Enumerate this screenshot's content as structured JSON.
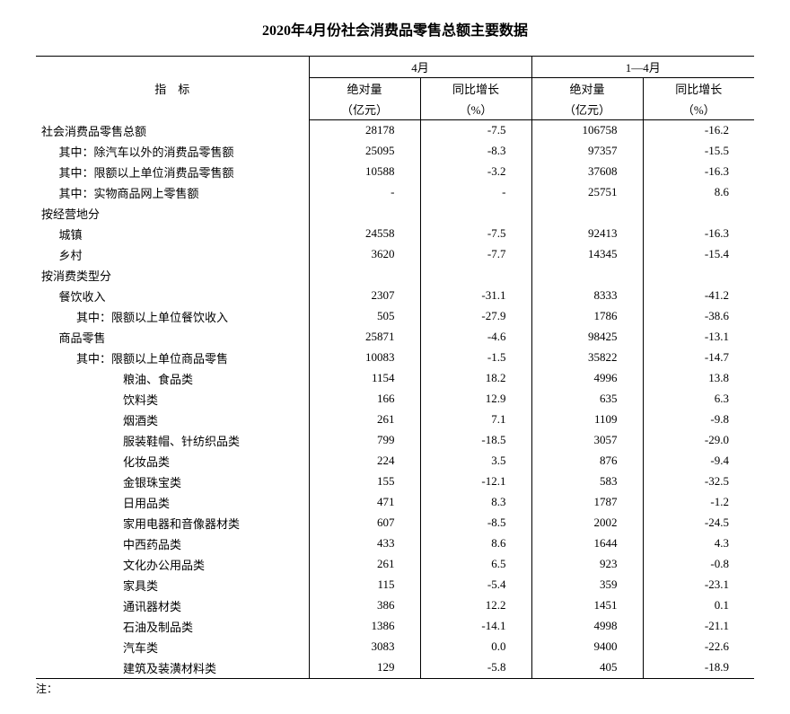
{
  "title": "2020年4月份社会消费品零售总额主要数据",
  "footnote": "注：",
  "header": {
    "indicator": "指　标",
    "group1": "4月",
    "group2": "1—4月",
    "abs": "绝对量",
    "abs_unit": "（亿元）",
    "yoy": "同比增长",
    "yoy_unit": "（%）"
  },
  "rows": [
    {
      "label": "社会消费品零售总额",
      "indent": 0,
      "a": "28178",
      "b": "-7.5",
      "c": "106758",
      "d": "-16.2"
    },
    {
      "label": "其中：除汽车以外的消费品零售额",
      "indent": 1,
      "a": "25095",
      "b": "-8.3",
      "c": "97357",
      "d": "-15.5"
    },
    {
      "label": "其中：限额以上单位消费品零售额",
      "indent": 1,
      "a": "10588",
      "b": "-3.2",
      "c": "37608",
      "d": "-16.3"
    },
    {
      "label": "其中：实物商品网上零售额",
      "indent": 1,
      "a": "-",
      "b": "-",
      "c": "25751",
      "d": "8.6"
    },
    {
      "label": "按经营地分",
      "indent": 0,
      "a": "",
      "b": "",
      "c": "",
      "d": ""
    },
    {
      "label": "城镇",
      "indent": 1,
      "a": "24558",
      "b": "-7.5",
      "c": "92413",
      "d": "-16.3"
    },
    {
      "label": "乡村",
      "indent": 1,
      "a": "3620",
      "b": "-7.7",
      "c": "14345",
      "d": "-15.4"
    },
    {
      "label": "按消费类型分",
      "indent": 0,
      "a": "",
      "b": "",
      "c": "",
      "d": ""
    },
    {
      "label": "餐饮收入",
      "indent": 1,
      "a": "2307",
      "b": "-31.1",
      "c": "8333",
      "d": "-41.2"
    },
    {
      "label": "其中：限额以上单位餐饮收入",
      "indent": 2,
      "a": "505",
      "b": "-27.9",
      "c": "1786",
      "d": "-38.6"
    },
    {
      "label": "商品零售",
      "indent": 1,
      "a": "25871",
      "b": "-4.6",
      "c": "98425",
      "d": "-13.1"
    },
    {
      "label": "其中：限额以上单位商品零售",
      "indent": 2,
      "a": "10083",
      "b": "-1.5",
      "c": "35822",
      "d": "-14.7"
    },
    {
      "label": "粮油、食品类",
      "indent": 3,
      "a": "1154",
      "b": "18.2",
      "c": "4996",
      "d": "13.8"
    },
    {
      "label": "饮料类",
      "indent": 3,
      "a": "166",
      "b": "12.9",
      "c": "635",
      "d": "6.3"
    },
    {
      "label": "烟酒类",
      "indent": 3,
      "a": "261",
      "b": "7.1",
      "c": "1109",
      "d": "-9.8"
    },
    {
      "label": "服装鞋帽、针纺织品类",
      "indent": 3,
      "a": "799",
      "b": "-18.5",
      "c": "3057",
      "d": "-29.0"
    },
    {
      "label": "化妆品类",
      "indent": 3,
      "a": "224",
      "b": "3.5",
      "c": "876",
      "d": "-9.4"
    },
    {
      "label": "金银珠宝类",
      "indent": 3,
      "a": "155",
      "b": "-12.1",
      "c": "583",
      "d": "-32.5"
    },
    {
      "label": "日用品类",
      "indent": 3,
      "a": "471",
      "b": "8.3",
      "c": "1787",
      "d": "-1.2"
    },
    {
      "label": "家用电器和音像器材类",
      "indent": 3,
      "a": "607",
      "b": "-8.5",
      "c": "2002",
      "d": "-24.5"
    },
    {
      "label": "中西药品类",
      "indent": 3,
      "a": "433",
      "b": "8.6",
      "c": "1644",
      "d": "4.3"
    },
    {
      "label": "文化办公用品类",
      "indent": 3,
      "a": "261",
      "b": "6.5",
      "c": "923",
      "d": "-0.8"
    },
    {
      "label": "家具类",
      "indent": 3,
      "a": "115",
      "b": "-5.4",
      "c": "359",
      "d": "-23.1"
    },
    {
      "label": "通讯器材类",
      "indent": 3,
      "a": "386",
      "b": "12.2",
      "c": "1451",
      "d": "0.1"
    },
    {
      "label": "石油及制品类",
      "indent": 3,
      "a": "1386",
      "b": "-14.1",
      "c": "4998",
      "d": "-21.1"
    },
    {
      "label": "汽车类",
      "indent": 3,
      "a": "3083",
      "b": "0.0",
      "c": "9400",
      "d": "-22.6"
    },
    {
      "label": "建筑及装潢材料类",
      "indent": 3,
      "a": "129",
      "b": "-5.8",
      "c": "405",
      "d": "-18.9"
    }
  ]
}
